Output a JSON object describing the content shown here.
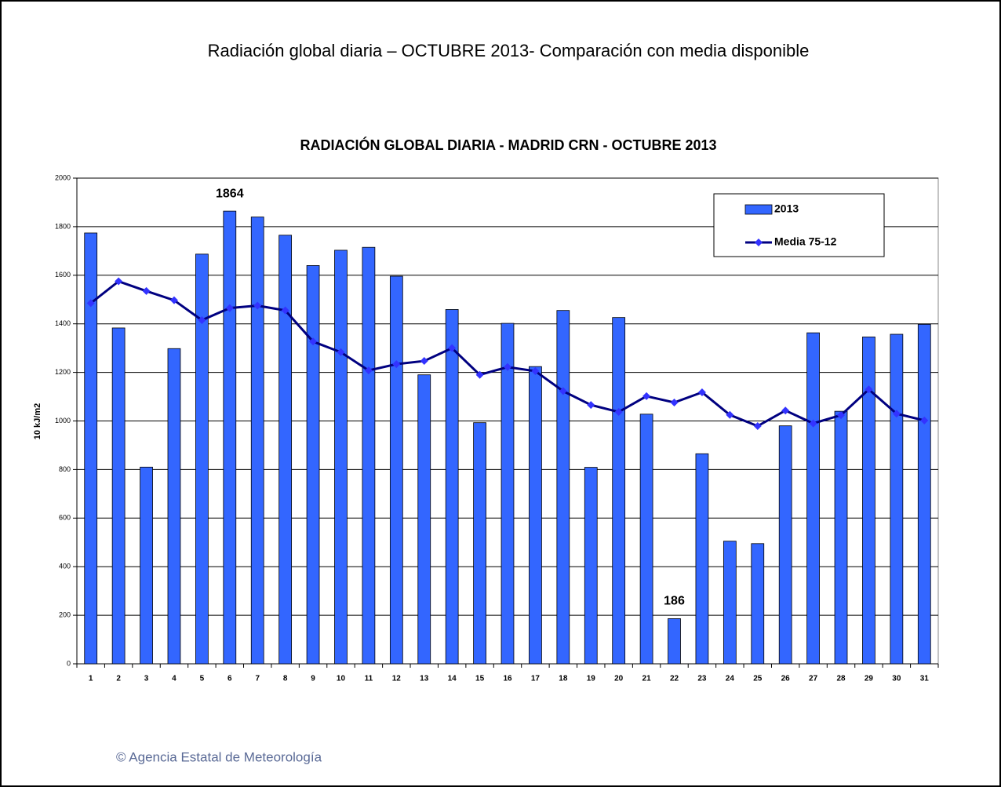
{
  "header": "Radiación global diaria –  OCTUBRE 2013- Comparación con media disponible",
  "footer": "© Agencia Estatal de Meteorología",
  "chart_data": {
    "type": "bar",
    "title": "RADIACIÓN GLOBAL DIARIA -  MADRID  CRN -   OCTUBRE  2013",
    "y_label": "10 kJ/m2",
    "categories": [
      "1",
      "2",
      "3",
      "4",
      "5",
      "6",
      "7",
      "8",
      "9",
      "10",
      "11",
      "12",
      "13",
      "14",
      "15",
      "16",
      "17",
      "18",
      "19",
      "20",
      "21",
      "22",
      "23",
      "24",
      "25",
      "26",
      "27",
      "28",
      "29",
      "30",
      "31"
    ],
    "series": [
      {
        "name": "2013",
        "type": "bar",
        "color": "#3366ff",
        "values": [
          1774,
          1383,
          810,
          1298,
          1687,
          1864,
          1840,
          1765,
          1640,
          1703,
          1715,
          1596,
          1190,
          1459,
          993,
          1402,
          1224,
          1455,
          809,
          1426,
          1028,
          186,
          865,
          505,
          495,
          980,
          1363,
          1040,
          1346,
          1357,
          1398
        ],
        "value_labels": [
          null,
          null,
          null,
          null,
          null,
          "1864",
          null,
          null,
          null,
          null,
          null,
          null,
          null,
          null,
          null,
          null,
          null,
          null,
          null,
          null,
          null,
          "186",
          null,
          null,
          null,
          null,
          null,
          null,
          null,
          null,
          null
        ]
      },
      {
        "name": "Media 75-12",
        "type": "line",
        "color": "#000080",
        "marker_color": "#3333ff",
        "values": [
          1485,
          1575,
          1535,
          1497,
          1415,
          1465,
          1475,
          1455,
          1327,
          1283,
          1208,
          1234,
          1247,
          1300,
          1190,
          1222,
          1205,
          1123,
          1066,
          1037,
          1102,
          1076,
          1118,
          1025,
          979,
          1043,
          990,
          1024,
          1130,
          1030,
          1002
        ]
      }
    ],
    "ylim": [
      0,
      2000
    ],
    "yticks": [
      0,
      200,
      400,
      600,
      800,
      1000,
      1200,
      1400,
      1600,
      1800,
      2000
    ],
    "grid": true,
    "legend": "upper right"
  }
}
